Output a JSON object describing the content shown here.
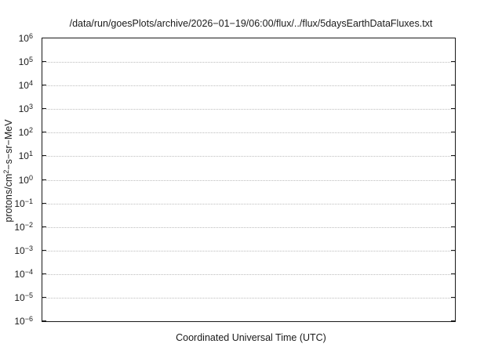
{
  "chart_data": {
    "type": "line",
    "title": "/data/run/goesPlots/archive/2026−01−19/06:00/flux/../flux/5daysEarthDataFluxes.txt",
    "xlabel": "Coordinated Universal Time (UTC)",
    "ylabel": {
      "prefix": "protons/cm",
      "sup": "2",
      "suffix": "−s−sr−MeV"
    },
    "y_axis": {
      "scale": "log",
      "tick_base": "10",
      "tick_exponents": [
        6,
        5,
        4,
        3,
        2,
        1,
        0,
        -1,
        -2,
        -3,
        -4,
        -5,
        -6
      ],
      "lim_exponents": [
        6,
        -6
      ]
    },
    "x_axis": {
      "ticks": []
    },
    "grid": {
      "horizontal": "dotted",
      "vertical": "none"
    },
    "legend": "none",
    "series": [],
    "colors": {
      "background": "#ffffff",
      "border": "#1a1a1a",
      "gridline": "#bdbdbd",
      "text": "#1a1a1a"
    }
  }
}
